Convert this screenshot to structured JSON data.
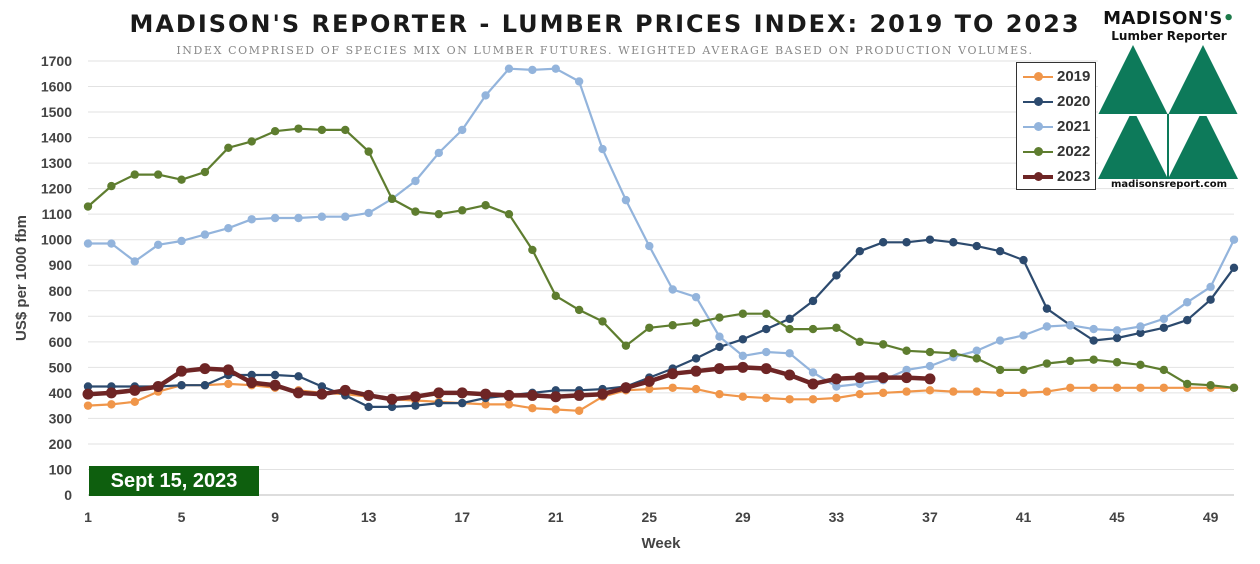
{
  "chart_data": {
    "type": "line",
    "title": "MADISON'S REPORTER - LUMBER PRICES INDEX: 2019 TO 2023",
    "subtitle": "INDEX COMPRISED OF SPECIES MIX ON LUMBER FUTURES. WEIGHTED AVERAGE BASED ON PRODUCTION VOLUMES.",
    "xlabel": "Week",
    "ylabel": "US$ per 1000 fbm",
    "xlim": [
      1,
      50
    ],
    "ylim": [
      0,
      1700
    ],
    "x_ticks": [
      1,
      5,
      9,
      13,
      17,
      21,
      25,
      29,
      33,
      37,
      41,
      45,
      49
    ],
    "y_ticks": [
      0,
      100,
      200,
      300,
      400,
      500,
      600,
      700,
      800,
      900,
      1000,
      1100,
      1200,
      1300,
      1400,
      1500,
      1600,
      1700
    ],
    "grid": "horizontal",
    "legend_position": "top-right",
    "series": [
      {
        "name": "2019",
        "color": "#f0964a",
        "width": "normal",
        "x": [
          1,
          2,
          3,
          4,
          5,
          6,
          7,
          8,
          9,
          10,
          11,
          12,
          13,
          14,
          15,
          16,
          17,
          18,
          19,
          20,
          21,
          22,
          23,
          24,
          25,
          26,
          27,
          28,
          29,
          30,
          31,
          32,
          33,
          34,
          35,
          36,
          37,
          38,
          39,
          40,
          41,
          42,
          43,
          44,
          45,
          46,
          47,
          48,
          49,
          50
        ],
        "values": [
          350,
          355,
          365,
          405,
          430,
          430,
          435,
          430,
          420,
          410,
          400,
          395,
          385,
          375,
          370,
          365,
          360,
          355,
          355,
          340,
          335,
          330,
          385,
          410,
          415,
          420,
          415,
          395,
          385,
          380,
          375,
          375,
          380,
          395,
          400,
          405,
          410,
          405,
          405,
          400,
          400,
          405,
          420,
          420,
          420,
          420,
          420,
          420,
          420,
          420
        ]
      },
      {
        "name": "2020",
        "color": "#2c4a6e",
        "width": "normal",
        "x": [
          1,
          2,
          3,
          4,
          5,
          6,
          7,
          8,
          9,
          10,
          11,
          12,
          13,
          14,
          15,
          16,
          17,
          18,
          19,
          20,
          21,
          22,
          23,
          24,
          25,
          26,
          27,
          28,
          29,
          30,
          31,
          32,
          33,
          34,
          35,
          36,
          37,
          38,
          39,
          40,
          41,
          42,
          43,
          44,
          45,
          46,
          47,
          48,
          49,
          50
        ],
        "values": [
          425,
          425,
          425,
          425,
          430,
          430,
          470,
          470,
          470,
          465,
          425,
          390,
          345,
          345,
          350,
          360,
          360,
          380,
          390,
          400,
          410,
          410,
          415,
          425,
          460,
          495,
          535,
          580,
          610,
          650,
          690,
          760,
          860,
          955,
          990,
          990,
          1000,
          990,
          975,
          955,
          920,
          730,
          665,
          605,
          615,
          635,
          655,
          685,
          765,
          890
        ]
      },
      {
        "name": "2021",
        "color": "#93b4dc",
        "width": "normal",
        "x": [
          1,
          2,
          3,
          4,
          5,
          6,
          7,
          8,
          9,
          10,
          11,
          12,
          13,
          14,
          15,
          16,
          17,
          18,
          19,
          20,
          21,
          22,
          23,
          24,
          25,
          26,
          27,
          28,
          29,
          30,
          31,
          32,
          33,
          34,
          35,
          36,
          37,
          38,
          39,
          40,
          41,
          42,
          43,
          44,
          45,
          46,
          47,
          48,
          49,
          50
        ],
        "values": [
          985,
          985,
          915,
          980,
          995,
          1020,
          1045,
          1080,
          1085,
          1085,
          1090,
          1090,
          1105,
          1160,
          1230,
          1340,
          1430,
          1565,
          1670,
          1665,
          1670,
          1620,
          1355,
          1155,
          975,
          805,
          775,
          620,
          545,
          560,
          555,
          480,
          425,
          435,
          450,
          490,
          505,
          540,
          565,
          605,
          625,
          660,
          665,
          650,
          645,
          660,
          690,
          755,
          815,
          1000
        ]
      },
      {
        "name": "2022",
        "color": "#5e7d2f",
        "width": "normal",
        "x": [
          1,
          2,
          3,
          4,
          5,
          6,
          7,
          8,
          9,
          10,
          11,
          12,
          13,
          14,
          15,
          16,
          17,
          18,
          19,
          20,
          21,
          22,
          23,
          24,
          25,
          26,
          27,
          28,
          29,
          30,
          31,
          32,
          33,
          34,
          35,
          36,
          37,
          38,
          39,
          40,
          41,
          42,
          43,
          44,
          45,
          46,
          47,
          48,
          49,
          50
        ],
        "values": [
          1130,
          1210,
          1255,
          1255,
          1235,
          1265,
          1360,
          1385,
          1425,
          1435,
          1430,
          1430,
          1345,
          1160,
          1110,
          1100,
          1115,
          1135,
          1100,
          960,
          780,
          725,
          680,
          585,
          655,
          665,
          675,
          695,
          710,
          710,
          650,
          650,
          655,
          600,
          590,
          565,
          560,
          555,
          535,
          490,
          490,
          515,
          525,
          530,
          520,
          510,
          490,
          435,
          430,
          420
        ]
      },
      {
        "name": "2023",
        "color": "#6e2525",
        "width": "bold",
        "x": [
          1,
          2,
          3,
          4,
          5,
          6,
          7,
          8,
          9,
          10,
          11,
          12,
          13,
          14,
          15,
          16,
          17,
          18,
          19,
          20,
          21,
          22,
          23,
          24,
          25,
          26,
          27,
          28,
          29,
          30,
          31,
          32,
          33,
          34,
          35,
          36,
          37
        ],
        "values": [
          395,
          400,
          410,
          425,
          485,
          495,
          490,
          440,
          430,
          400,
          395,
          410,
          390,
          375,
          385,
          400,
          400,
          395,
          390,
          390,
          385,
          390,
          395,
          420,
          445,
          475,
          485,
          495,
          500,
          495,
          470,
          435,
          455,
          460,
          460,
          460,
          455
        ]
      }
    ],
    "annotation": "Sept 15, 2023"
  },
  "logo": {
    "name": "MADISON'S",
    "name_mark": "•",
    "subtitle": "Lumber Reporter",
    "url": "madisonsreport.com",
    "color": "#0d7a5a"
  }
}
